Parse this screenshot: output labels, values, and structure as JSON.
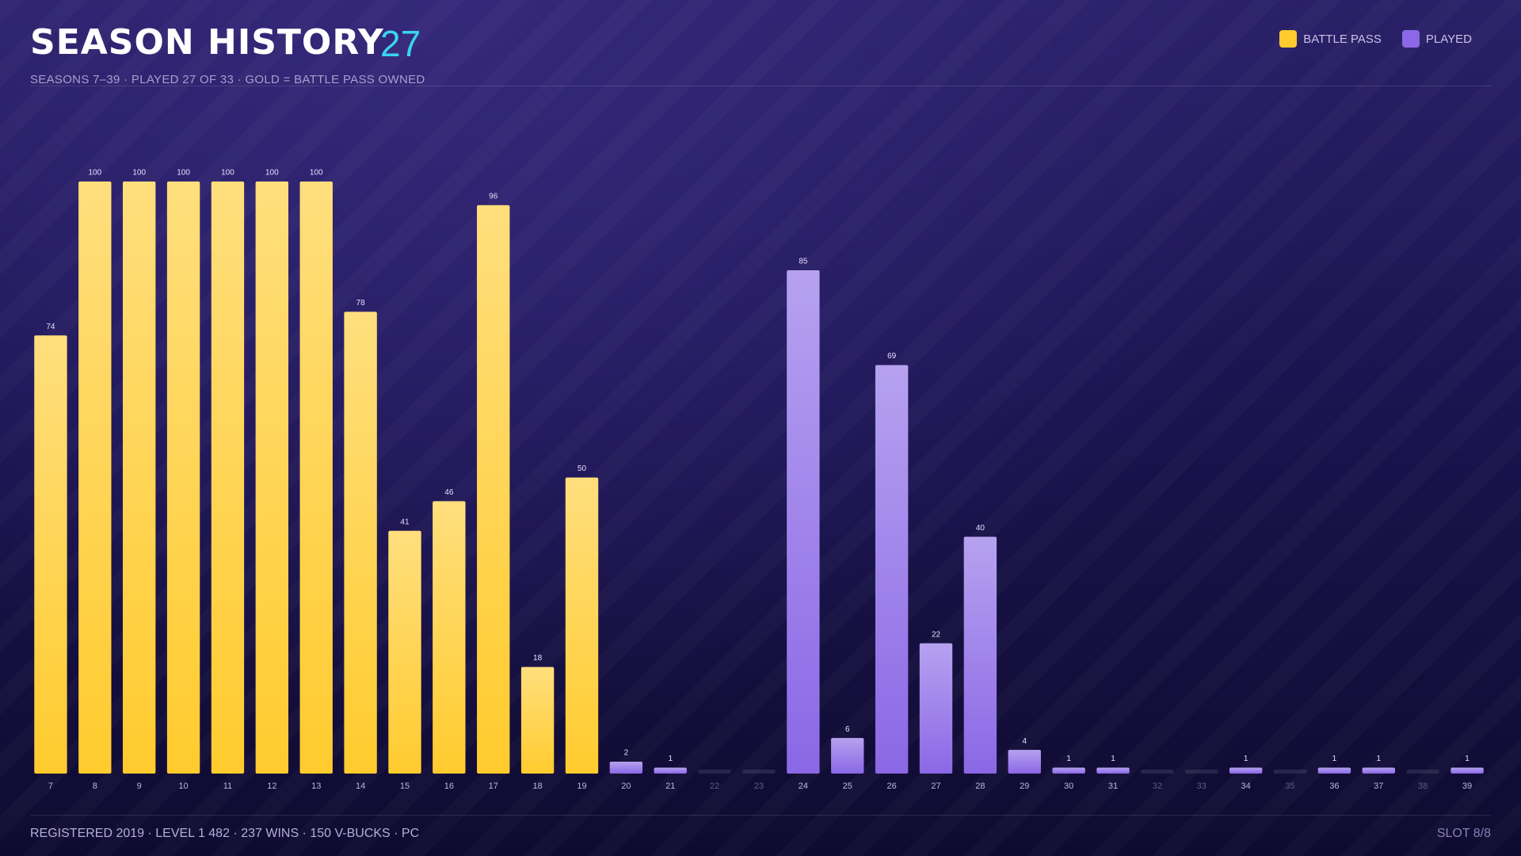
{
  "chart_data": {
    "type": "bar",
    "title": "SEASON HISTORY",
    "title_badge": "27",
    "subtitle": "SEASONS 7–39 · PLAYED 27 OF 33 · GOLD = BATTLE PASS OWNED",
    "footer": "REGISTERED 2019 · LEVEL 1 482 · 237 WINS · 150 V-BUCKS · PC",
    "footer_right": "SLOT 8/8",
    "categories": [
      "7",
      "8",
      "9",
      "10",
      "11",
      "12",
      "13",
      "14",
      "15",
      "16",
      "17",
      "18",
      "19",
      "20",
      "21",
      "22",
      "23",
      "24",
      "25",
      "26",
      "27",
      "28",
      "29",
      "30",
      "31",
      "32",
      "33",
      "34",
      "35",
      "36",
      "37",
      "38",
      "39"
    ],
    "series": [
      {
        "name": "BATTLE PASS",
        "color": "#ffcb2e",
        "values": [
          74,
          100,
          100,
          100,
          100,
          100,
          100,
          78,
          41,
          46,
          96,
          18,
          50,
          null,
          null,
          null,
          null,
          null,
          null,
          null,
          null,
          null,
          null,
          null,
          null,
          null,
          null,
          null,
          null,
          null,
          null,
          null,
          null
        ]
      },
      {
        "name": "PLAYED",
        "color": "#8a68e6",
        "values": [
          null,
          null,
          null,
          null,
          null,
          null,
          null,
          null,
          null,
          null,
          null,
          null,
          null,
          2,
          1,
          null,
          null,
          85,
          6,
          69,
          22,
          40,
          4,
          1,
          1,
          null,
          null,
          1,
          null,
          1,
          1,
          null,
          1
        ]
      }
    ],
    "ylim": [
      0,
      100
    ]
  }
}
